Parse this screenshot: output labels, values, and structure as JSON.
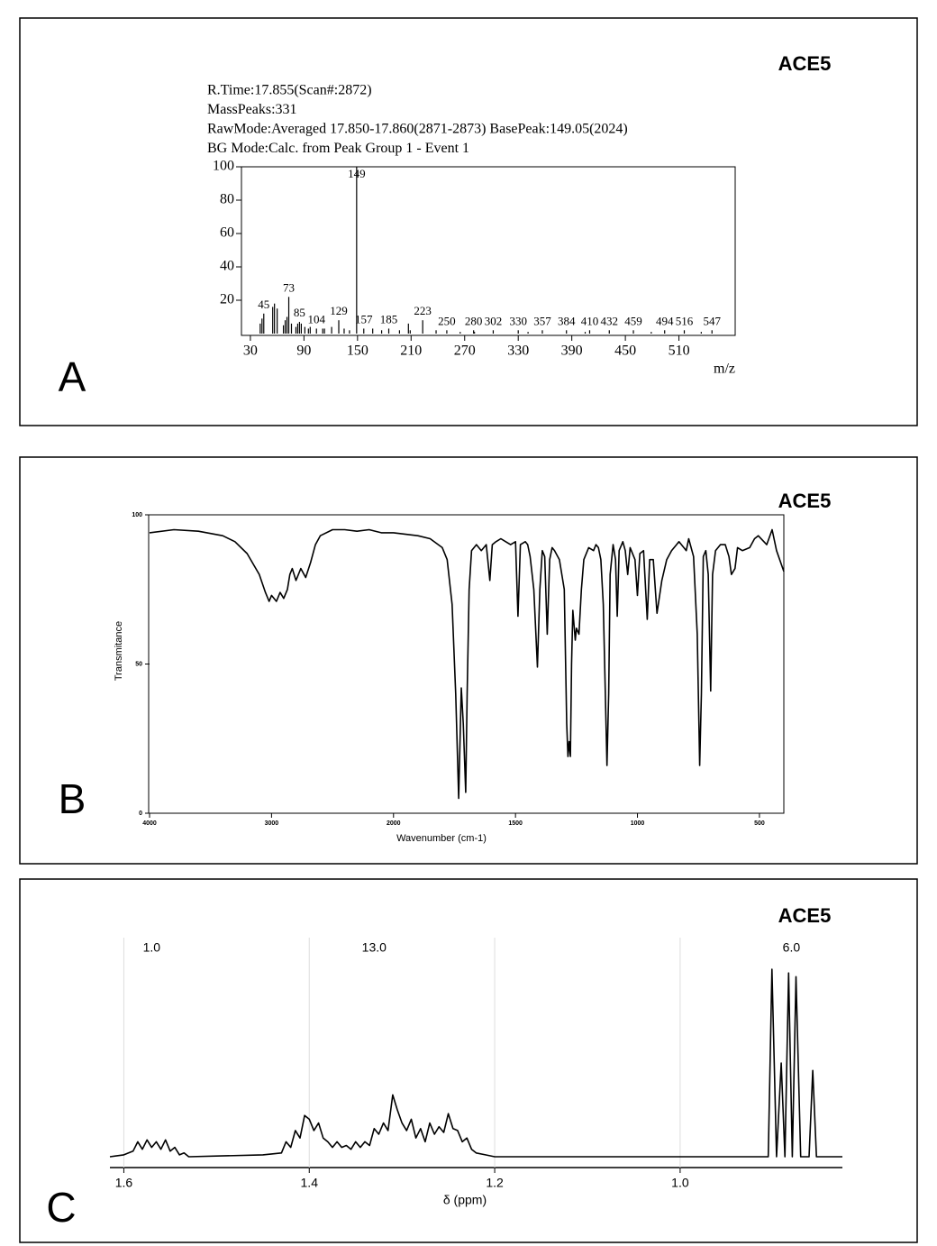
{
  "chart_data": [
    {
      "type": "stem",
      "panel": "A",
      "title": "ACE5",
      "header_lines": [
        "R.Time:17.855(Scan#:2872)",
        "MassPeaks:331",
        "RawMode:Averaged 17.850-17.860(2871-2873)  BasePeak:149.05(2024)",
        "BG Mode:Calc. from Peak  Group 1 - Event 1"
      ],
      "xlabel": "m/z",
      "color": "#000000",
      "x": [
        45,
        73,
        85,
        104,
        129,
        149,
        157,
        185,
        223,
        250,
        280,
        302,
        330,
        357,
        384,
        410,
        432,
        459,
        494,
        516,
        547
      ],
      "values": [
        12,
        22,
        7,
        3,
        8,
        100,
        3,
        3,
        8,
        2,
        2,
        2,
        2,
        2,
        2,
        2,
        2,
        2,
        2,
        2,
        2
      ],
      "minor_x": [
        41,
        43,
        55,
        57,
        60,
        67,
        69,
        71,
        76,
        81,
        83,
        87,
        91,
        95,
        97,
        111,
        113,
        121,
        135,
        141,
        167,
        177,
        197,
        207,
        209,
        238,
        265,
        281,
        341,
        405,
        479,
        535
      ],
      "minor_values": [
        6,
        9,
        16,
        18,
        15,
        5,
        8,
        10,
        6,
        4,
        6,
        6,
        4,
        3,
        4,
        3,
        3,
        4,
        3,
        2,
        3,
        2,
        2,
        6,
        2,
        2,
        1,
        1,
        1,
        1,
        1,
        1
      ],
      "xlim": [
        20,
        573
      ],
      "ylim": [
        0,
        100
      ],
      "xticks": [
        30,
        90,
        150,
        210,
        270,
        330,
        390,
        450,
        510
      ],
      "yticks": [
        20,
        40,
        60,
        80,
        100
      ]
    },
    {
      "type": "line",
      "panel": "B",
      "title": "ACE5",
      "xlabel": "Wavenumber (cm-1)",
      "ylabel": "Transmitance",
      "color": "#000000",
      "x_break": 2000,
      "x_break_expansion": 2,
      "x": [
        4000,
        3800,
        3600,
        3400,
        3300,
        3200,
        3100,
        3050,
        3020,
        3000,
        2960,
        2930,
        2900,
        2870,
        2850,
        2830,
        2800,
        2760,
        2720,
        2680,
        2640,
        2600,
        2500,
        2400,
        2300,
        2200,
        2100,
        2000,
        1900,
        1850,
        1800,
        1780,
        1760,
        1745,
        1733,
        1722,
        1714,
        1704,
        1698,
        1690,
        1680,
        1660,
        1640,
        1620,
        1605,
        1595,
        1580,
        1560,
        1540,
        1520,
        1500,
        1490,
        1480,
        1460,
        1450,
        1440,
        1425,
        1410,
        1400,
        1390,
        1380,
        1370,
        1360,
        1350,
        1340,
        1320,
        1300,
        1290,
        1285,
        1280,
        1275,
        1270,
        1265,
        1255,
        1250,
        1240,
        1230,
        1220,
        1200,
        1180,
        1170,
        1160,
        1150,
        1140,
        1125,
        1118,
        1112,
        1100,
        1090,
        1083,
        1075,
        1060,
        1050,
        1040,
        1030,
        1010,
        1000,
        990,
        975,
        960,
        950,
        935,
        920,
        900,
        880,
        860,
        840,
        830,
        810,
        800,
        790,
        770,
        755,
        745,
        738,
        730,
        720,
        710,
        700,
        692,
        680,
        660,
        640,
        625,
        615,
        600,
        590,
        570,
        540,
        520,
        505,
        470,
        448,
        430,
        400
      ],
      "values": [
        94,
        95,
        94.5,
        93,
        91,
        87,
        80,
        74,
        71,
        73,
        71,
        74,
        72,
        75,
        80,
        82,
        78,
        82,
        79,
        84,
        90,
        93,
        95,
        95,
        94.5,
        95,
        94,
        94,
        93,
        92,
        89,
        85,
        70,
        40,
        5,
        42,
        30,
        7,
        40,
        75,
        88,
        90,
        88,
        90,
        78,
        90,
        91,
        92,
        91,
        90,
        91,
        66,
        90,
        91,
        90,
        86,
        75,
        49,
        75,
        88,
        86,
        60,
        85,
        89,
        88,
        85,
        75,
        30,
        19,
        24,
        19,
        50,
        68,
        58,
        62,
        60,
        75,
        85,
        89,
        88,
        90,
        89,
        85,
        70,
        16,
        40,
        80,
        90,
        85,
        66,
        88,
        91,
        88,
        80,
        89,
        85,
        73,
        87,
        88,
        65,
        85,
        85,
        67,
        78,
        85,
        88,
        90,
        91,
        89,
        88,
        92,
        86,
        60,
        16,
        40,
        86,
        88,
        80,
        41,
        80,
        88,
        90,
        90,
        86,
        80,
        82,
        89,
        88,
        89,
        92,
        93,
        90,
        95,
        88,
        81
      ],
      "xlim": [
        4000,
        400
      ],
      "ylim": [
        0,
        100
      ],
      "xticks": [
        4000,
        3000,
        2000,
        1500,
        1000,
        500
      ],
      "yticks": [
        0,
        50,
        100
      ]
    },
    {
      "type": "line",
      "panel": "C",
      "title": "ACE5",
      "xlabel": "δ (ppm)",
      "color": "#000000",
      "grid": true,
      "integrals": [
        {
          "x": 1.57,
          "value": 1,
          "label": "1.0"
        },
        {
          "x": 1.33,
          "value": 13,
          "label": "13.0"
        },
        {
          "x": 0.88,
          "value": 6,
          "label": "6.0"
        }
      ],
      "x": [
        1.615,
        1.6,
        1.59,
        1.585,
        1.58,
        1.575,
        1.57,
        1.565,
        1.56,
        1.555,
        1.55,
        1.545,
        1.54,
        1.535,
        1.53,
        1.45,
        1.43,
        1.425,
        1.42,
        1.415,
        1.41,
        1.405,
        1.4,
        1.395,
        1.39,
        1.385,
        1.38,
        1.375,
        1.37,
        1.365,
        1.36,
        1.355,
        1.35,
        1.345,
        1.34,
        1.335,
        1.33,
        1.325,
        1.32,
        1.315,
        1.31,
        1.305,
        1.3,
        1.295,
        1.29,
        1.285,
        1.28,
        1.275,
        1.27,
        1.265,
        1.26,
        1.255,
        1.25,
        1.245,
        1.24,
        1.235,
        1.23,
        1.225,
        1.22,
        1.21,
        1.2,
        0.905,
        0.901,
        0.896,
        0.891,
        0.887,
        0.883,
        0.879,
        0.875,
        0.87,
        0.861,
        0.857,
        0.853,
        0.825
      ],
      "values": [
        0,
        1,
        3,
        8,
        4,
        9,
        5,
        8,
        4,
        9,
        3,
        5,
        1,
        2,
        0,
        1,
        2,
        8,
        5,
        14,
        10,
        22,
        20,
        14,
        18,
        10,
        8,
        5,
        8,
        5,
        6,
        4,
        8,
        5,
        8,
        6,
        15,
        12,
        18,
        14,
        33,
        25,
        18,
        14,
        20,
        10,
        15,
        8,
        18,
        12,
        16,
        13,
        23,
        15,
        14,
        8,
        10,
        4,
        2,
        1,
        0,
        0,
        100,
        0,
        50,
        0,
        98,
        0,
        96,
        0,
        0,
        46,
        0,
        0
      ],
      "xlim": [
        1.615,
        0.825
      ],
      "ylim": [
        0,
        100
      ],
      "xticks": [
        1.6,
        1.4,
        1.2,
        {
          "value": 1,
          "label": "1.0"
        }
      ]
    }
  ]
}
